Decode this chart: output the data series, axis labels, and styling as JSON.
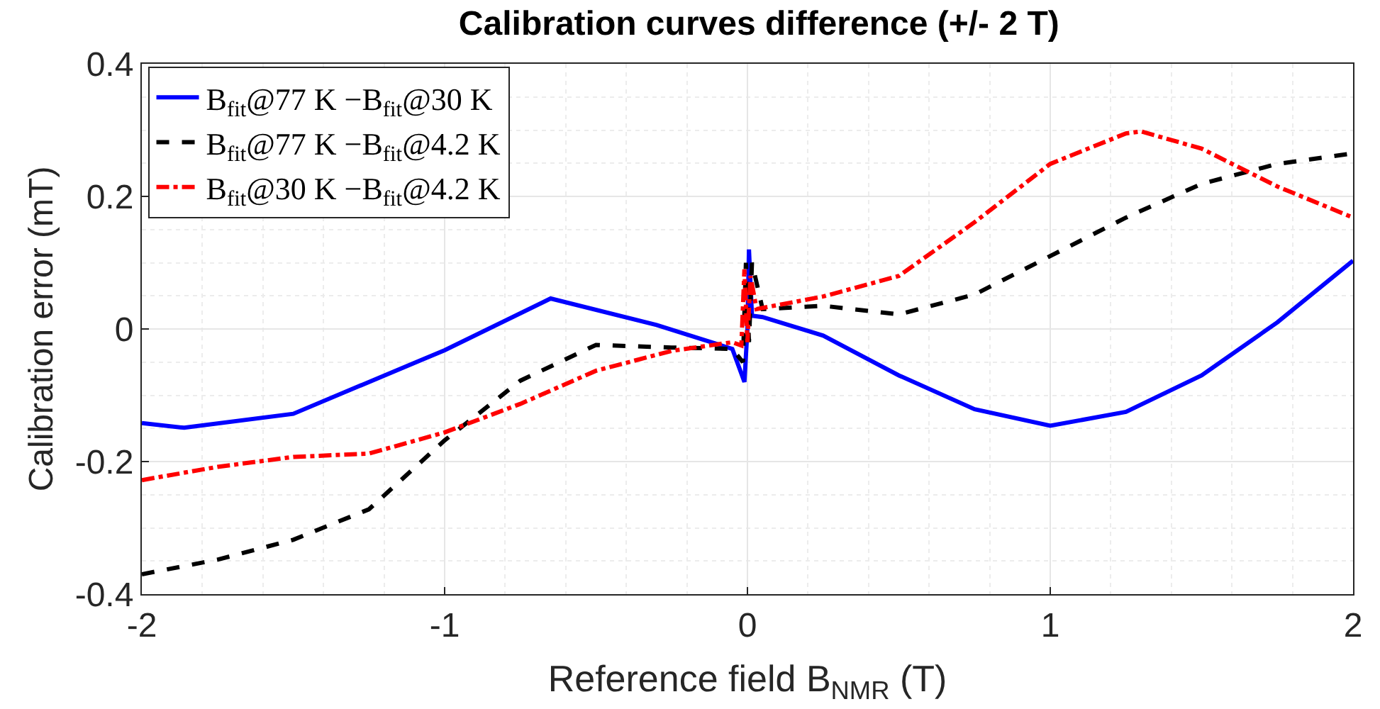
{
  "chart_data": {
    "type": "line",
    "title": "Calibration curves difference (+/- 2 T)",
    "xlabel": "Reference field B$_{NMR}$ (T)",
    "ylabel": "Calibration error (mT)",
    "xlim": [
      -2,
      2
    ],
    "xticks": [
      {
        "value": -2,
        "label": "-2"
      },
      {
        "value": -1,
        "label": "-1"
      },
      0,
      1,
      2
    ],
    "ylim": [
      -0.4,
      0.4
    ],
    "yticks": [
      {
        "value": -0.4,
        "label": "-0.4"
      },
      {
        "value": -0.2,
        "label": "-0.2"
      },
      0,
      0.2,
      0.4
    ],
    "grid": true,
    "legend": "top left",
    "marker": "none",
    "series": [
      {
        "name": "B$_{fit}$@77 K −B$_{fit}$@30 K",
        "color": "#0000ff",
        "line_style": "solid",
        "x": [
          -2,
          -1.86,
          -1.5,
          -1,
          -0.65,
          -0.3,
          -0.05,
          -0.01,
          0,
          0.005,
          0.015,
          0.05,
          0.25,
          0.5,
          0.75,
          1,
          1.25,
          1.5,
          1.75,
          2
        ],
        "values": [
          -0.142,
          -0.149,
          -0.128,
          -0.032,
          0.046,
          0.006,
          -0.03,
          -0.08,
          0,
          0.12,
          0.02,
          0.018,
          -0.01,
          -0.07,
          -0.121,
          -0.146,
          -0.125,
          -0.07,
          0.01,
          0.103
        ]
      },
      {
        "name": "B$_{fit}$@77 K −B$_{fit}$@4.2 K",
        "color": "#000000",
        "line_style": "dashed",
        "x": [
          -2,
          -1.75,
          -1.5,
          -1.25,
          -1,
          -0.75,
          -0.5,
          -0.25,
          -0.05,
          -0.015,
          -0.005,
          0.005,
          0.015,
          0.05,
          0.25,
          0.5,
          0.75,
          1,
          1.25,
          1.5,
          1.75,
          2
        ],
        "values": [
          -0.37,
          -0.348,
          -0.318,
          -0.272,
          -0.168,
          -0.078,
          -0.024,
          -0.028,
          -0.03,
          -0.05,
          0.1,
          -0.02,
          0.1,
          0.03,
          0.035,
          0.022,
          0.052,
          0.11,
          0.168,
          0.219,
          0.249,
          0.265
        ]
      },
      {
        "name": "B$_{fit}$@30 K −B$_{fit}$@4.2 K",
        "color": "#ff0000",
        "line_style": "dashdot",
        "x": [
          -2,
          -1.75,
          -1.5,
          -1.25,
          -1,
          -0.75,
          -0.5,
          -0.25,
          -0.05,
          -0.02,
          -0.01,
          0,
          0.01,
          0.03,
          0.25,
          0.5,
          0.75,
          1,
          1.25,
          1.3,
          1.5,
          1.75,
          2
        ],
        "values": [
          -0.228,
          -0.208,
          -0.193,
          -0.188,
          -0.156,
          -0.113,
          -0.063,
          -0.033,
          -0.02,
          -0.025,
          0.09,
          -0.02,
          0.08,
          0.03,
          0.049,
          0.08,
          0.161,
          0.249,
          0.295,
          0.298,
          0.272,
          0.215,
          0.168
        ]
      }
    ]
  }
}
